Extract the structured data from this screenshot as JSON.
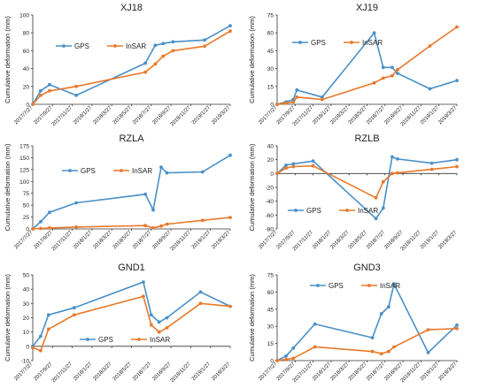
{
  "colors": {
    "gps": "#4A90C8",
    "insar": "#E8792B",
    "axis": "#333333",
    "text": "#222222"
  },
  "chart_data": [
    {
      "type": "line",
      "title": "XJ18",
      "ylabel": "Cumulative deformation  (mm)",
      "ylim": [
        0,
        100
      ],
      "yticks": [
        0,
        20,
        40,
        60,
        80,
        100
      ],
      "xticks": [
        "2017/7/27",
        "2017/9/27",
        "2017/11/27",
        "2018/1/27",
        "2018/3/27",
        "2018/5/27",
        "2018/7/27",
        "2018/9/27",
        "2018/11/27",
        "2019/1/27",
        "2019/3/27"
      ],
      "legend": "top-left",
      "series": [
        {
          "name": "GPS",
          "x": [
            0.0,
            0.4,
            0.85,
            2.2,
            5.7,
            6.2,
            6.6,
            7.1,
            8.7,
            10.0
          ],
          "y": [
            0,
            15,
            22,
            10,
            46,
            66,
            68,
            70,
            72,
            88
          ]
        },
        {
          "name": "InSAR",
          "x": [
            0.0,
            0.4,
            0.85,
            2.2,
            5.7,
            6.2,
            6.6,
            7.1,
            8.7,
            10.0
          ],
          "y": [
            0,
            10,
            15,
            20,
            36,
            45,
            54,
            60,
            65,
            82
          ]
        }
      ]
    },
    {
      "type": "line",
      "title": "XJ19",
      "ylabel": "Cumulative deformation  (mm)",
      "ylim": [
        0,
        75
      ],
      "yticks": [
        0,
        15,
        30,
        45,
        60,
        75
      ],
      "xticks": [
        "2017/7/27",
        "2017/9/27",
        "2017/11/27",
        "2018/1/27",
        "2018/3/27",
        "2018/5/27",
        "2018/7/27",
        "2018/9/27",
        "2018/11/27",
        "2019/1/27",
        "2019/3/27"
      ],
      "legend": "top-left",
      "series": [
        {
          "name": "GPS",
          "x": [
            0.0,
            0.5,
            0.9,
            1.1,
            2.5,
            5.4,
            5.9,
            6.4,
            6.7,
            8.5,
            10.0
          ],
          "y": [
            0,
            2,
            4,
            12,
            6,
            60,
            31,
            31,
            26,
            13,
            20
          ]
        },
        {
          "name": "InSAR",
          "x": [
            0.0,
            0.5,
            0.9,
            1.1,
            2.5,
            5.4,
            5.9,
            6.4,
            6.7,
            8.5,
            10.0
          ],
          "y": [
            0,
            1,
            2,
            6,
            4,
            18,
            22,
            24,
            29,
            49,
            65
          ]
        }
      ]
    },
    {
      "type": "line",
      "title": "RZLA",
      "ylabel": "Cumulative deformation  (mm)",
      "ylim": [
        0,
        175
      ],
      "yticks": [
        0,
        25,
        50,
        75,
        100,
        125,
        150,
        175
      ],
      "xticks": [
        "2017/7/27",
        "2017/9/27",
        "2017/11/27",
        "2018/1/27",
        "2018/3/27",
        "2018/5/27",
        "2018/7/27",
        "2018/9/27",
        "2018/11/27",
        "2019/1/27",
        "2019/3/27"
      ],
      "legend": "top-left",
      "series": [
        {
          "name": "GPS",
          "x": [
            0.0,
            0.4,
            0.85,
            2.2,
            5.7,
            6.1,
            6.5,
            6.8,
            8.6,
            10.0
          ],
          "y": [
            0,
            15,
            35,
            55,
            73,
            40,
            130,
            118,
            120,
            155
          ]
        },
        {
          "name": "InSAR",
          "x": [
            0.0,
            0.4,
            0.85,
            2.2,
            5.7,
            6.1,
            6.5,
            6.8,
            8.6,
            10.0
          ],
          "y": [
            0,
            1,
            2,
            4,
            7,
            2,
            6,
            10,
            18,
            24
          ]
        }
      ]
    },
    {
      "type": "line",
      "title": "RZLB",
      "ylabel": "Cumulative deformation  (mm)",
      "ylim": [
        -80,
        40
      ],
      "yticks": [
        -80,
        -60,
        -40,
        -20,
        0,
        20,
        40
      ],
      "xticks": [
        "2017/7/27",
        "2017/9/27",
        "2017/11/27",
        "2018/1/27",
        "2018/3/27",
        "2018/5/27",
        "2018/7/27",
        "2018/9/27",
        "2018/11/27",
        "2019/1/27",
        "2019/3/27"
      ],
      "legend": "bottom-left",
      "series": [
        {
          "name": "GPS",
          "x": [
            0.0,
            0.5,
            0.9,
            2.0,
            5.5,
            5.9,
            6.4,
            6.7,
            8.6,
            10.0
          ],
          "y": [
            0,
            12,
            14,
            18,
            -65,
            -50,
            24,
            21,
            15,
            20
          ]
        },
        {
          "name": "InSAR",
          "x": [
            0.0,
            0.5,
            0.9,
            2.0,
            5.5,
            5.9,
            6.4,
            6.7,
            8.6,
            10.0
          ],
          "y": [
            0,
            8,
            10,
            11,
            -35,
            -12,
            0,
            1,
            6,
            10
          ]
        }
      ]
    },
    {
      "type": "line",
      "title": "GND1",
      "ylabel": "Cumulative deformation  (mm)",
      "ylim": [
        -10,
        50
      ],
      "yticks": [
        -10,
        0,
        10,
        20,
        30,
        40,
        50
      ],
      "xticks": [
        "2017/7/27",
        "2017/9/27",
        "2017/11/27",
        "2018/1/27",
        "2018/3/27",
        "2018/5/27",
        "2018/7/27",
        "2018/9/27",
        "2018/11/27",
        "2019/1/27",
        "2019/3/27"
      ],
      "legend": "bottom-left",
      "series": [
        {
          "name": "GPS",
          "x": [
            0.0,
            0.4,
            0.8,
            2.1,
            5.6,
            6.0,
            6.4,
            6.8,
            8.5,
            10.0
          ],
          "y": [
            0,
            7,
            22,
            27,
            45,
            22,
            17,
            20,
            38,
            28
          ]
        },
        {
          "name": "InSAR",
          "x": [
            0.0,
            0.4,
            0.8,
            2.1,
            5.6,
            6.0,
            6.4,
            6.8,
            8.5,
            10.0
          ],
          "y": [
            -1,
            -3,
            12,
            22,
            35,
            15,
            10,
            13,
            30,
            28
          ]
        }
      ]
    },
    {
      "type": "line",
      "title": "GND3",
      "ylabel": "Cumulative deformation  (mm)",
      "ylim": [
        0,
        75
      ],
      "yticks": [
        0,
        15,
        30,
        45,
        60,
        75
      ],
      "xticks": [
        "2017/7/27",
        "2017/9/27",
        "2017/11/27",
        "2018/1/27",
        "2018/3/27",
        "2018/5/27",
        "2018/7/27",
        "2018/9/27",
        "2018/11/27",
        "2019/1/27",
        "2019/3/27"
      ],
      "legend": "top-left",
      "series": [
        {
          "name": "GPS",
          "x": [
            0.0,
            0.5,
            0.9,
            2.1,
            5.3,
            5.8,
            6.2,
            6.5,
            8.4,
            10.0
          ],
          "y": [
            0,
            4,
            11,
            32,
            20,
            41,
            47,
            67,
            7,
            31
          ]
        },
        {
          "name": "InSAR",
          "x": [
            0.0,
            0.5,
            0.9,
            2.1,
            5.3,
            5.8,
            6.2,
            6.5,
            8.4,
            10.0
          ],
          "y": [
            0,
            1,
            2,
            12,
            8,
            6,
            8,
            12,
            27,
            28
          ]
        }
      ]
    }
  ]
}
